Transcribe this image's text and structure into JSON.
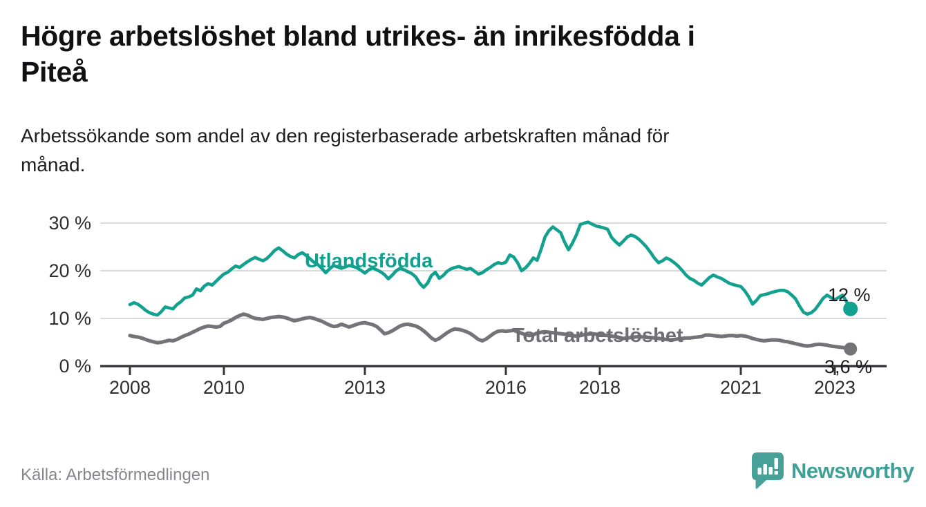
{
  "header": {
    "title_lines": [
      "Högre arbetslöshet bland utrikes- än inrikesfödda i",
      "Piteå"
    ],
    "subtitle_lines": [
      "Arbetssökande som andel av den registerbaserade arbetskraften månad för",
      "månad."
    ]
  },
  "footer": {
    "source": "Källa: Arbetsförmedlingen",
    "brand": "Newsworthy"
  },
  "colors": {
    "teal_line": "#12a08f",
    "gray_line": "#737378",
    "grid": "#d9d9d9",
    "axis": "#38383c",
    "brand_teal": "#3fa096"
  },
  "chart_data": {
    "type": "line",
    "title": "Högre arbetslöshet bland utrikes- än inrikesfödda i Piteå",
    "subtitle": "Arbetssökande som andel av den registerbaserade arbetskraften månad för månad.",
    "xlabel": "",
    "ylabel": "",
    "unit": "%",
    "x_start_year": 2008,
    "x_step_months": 1,
    "ylim": [
      0,
      32
    ],
    "grid": "horizontal",
    "legend_position": "inline-labels",
    "xticks": [
      {
        "year": 2008,
        "label": "2008"
      },
      {
        "year": 2010,
        "label": "2010"
      },
      {
        "year": 2013,
        "label": "2013"
      },
      {
        "year": 2016,
        "label": "2016"
      },
      {
        "year": 2018,
        "label": "2018"
      },
      {
        "year": 2021,
        "label": "2021"
      },
      {
        "year": 2023,
        "label": "2023"
      }
    ],
    "yticks": [
      {
        "value": 30,
        "label": "30 %"
      },
      {
        "value": 20,
        "label": "20 %"
      },
      {
        "value": 10,
        "label": "10 %"
      },
      {
        "value": 0,
        "label": "0 %"
      }
    ],
    "series": [
      {
        "name": "Utlandsfödda",
        "color": "#12a08f",
        "end_label": "12 %",
        "end_value": 12,
        "values": [
          12.9,
          13.3,
          13.0,
          12.4,
          11.7,
          11.2,
          10.9,
          10.7,
          11.4,
          12.4,
          12.2,
          12.0,
          12.9,
          13.5,
          14.3,
          14.5,
          14.9,
          16.2,
          15.8,
          16.8,
          17.3,
          17.0,
          17.8,
          18.6,
          19.3,
          19.7,
          20.4,
          21.0,
          20.7,
          21.3,
          21.9,
          22.4,
          22.8,
          22.4,
          22.1,
          22.6,
          23.4,
          24.3,
          24.8,
          24.2,
          23.5,
          23.0,
          22.7,
          23.4,
          23.8,
          23.2,
          22.5,
          21.8,
          21.3,
          20.5,
          19.6,
          20.4,
          21.1,
          20.8,
          20.5,
          20.8,
          21.1,
          20.9,
          20.6,
          20.1,
          19.5,
          20.2,
          20.6,
          20.2,
          19.8,
          19.2,
          18.3,
          19.1,
          20.0,
          20.5,
          20.2,
          19.8,
          19.4,
          18.7,
          17.4,
          16.5,
          17.4,
          19.0,
          19.7,
          18.4,
          19.0,
          19.9,
          20.4,
          20.7,
          20.9,
          20.6,
          20.3,
          20.5,
          19.9,
          19.3,
          19.6,
          20.2,
          20.7,
          21.3,
          21.7,
          21.5,
          21.8,
          23.3,
          22.9,
          21.7,
          20.0,
          20.6,
          21.5,
          22.7,
          22.2,
          24.5,
          27.1,
          28.4,
          29.2,
          28.6,
          28.0,
          26.0,
          24.4,
          25.8,
          27.5,
          29.7,
          30.0,
          30.2,
          29.8,
          29.4,
          29.2,
          29.0,
          28.7,
          27.0,
          26.1,
          25.4,
          26.2,
          27.1,
          27.5,
          27.2,
          26.6,
          25.8,
          24.9,
          23.8,
          22.6,
          21.7,
          22.1,
          22.7,
          22.3,
          21.7,
          21.0,
          20.1,
          19.1,
          18.4,
          18.0,
          17.4,
          17.0,
          17.8,
          18.6,
          19.1,
          18.7,
          18.4,
          17.9,
          17.4,
          17.1,
          16.9,
          16.7,
          15.8,
          14.6,
          13.0,
          13.8,
          14.8,
          15.0,
          15.2,
          15.5,
          15.7,
          15.9,
          15.9,
          15.6,
          14.9,
          14.1,
          12.6,
          11.3,
          10.9,
          11.2,
          11.9,
          13.0,
          14.2,
          14.9,
          14.4,
          13.9,
          14.4,
          14.9,
          13.5,
          12.0
        ]
      },
      {
        "name": "Total arbetslöshet",
        "color": "#737378",
        "end_label": "3,6 %",
        "end_value": 3.6,
        "values": [
          6.4,
          6.2,
          6.1,
          5.9,
          5.6,
          5.3,
          5.1,
          4.9,
          5.0,
          5.2,
          5.4,
          5.3,
          5.6,
          6.0,
          6.4,
          6.7,
          7.1,
          7.5,
          7.9,
          8.2,
          8.4,
          8.3,
          8.2,
          8.3,
          9.0,
          9.3,
          9.7,
          10.2,
          10.6,
          10.9,
          10.7,
          10.3,
          10.0,
          9.9,
          9.8,
          10.0,
          10.2,
          10.3,
          10.4,
          10.3,
          10.1,
          9.8,
          9.5,
          9.7,
          9.9,
          10.1,
          10.2,
          10.0,
          9.7,
          9.4,
          9.0,
          8.6,
          8.3,
          8.4,
          8.8,
          8.5,
          8.2,
          8.5,
          8.8,
          9.0,
          9.1,
          8.9,
          8.7,
          8.3,
          7.6,
          6.8,
          7.0,
          7.4,
          7.9,
          8.4,
          8.7,
          8.8,
          8.6,
          8.4,
          8.0,
          7.4,
          6.7,
          5.9,
          5.4,
          5.8,
          6.4,
          7.0,
          7.5,
          7.8,
          7.7,
          7.5,
          7.2,
          6.8,
          6.2,
          5.6,
          5.3,
          5.7,
          6.3,
          6.9,
          7.3,
          7.4,
          7.3,
          7.4,
          7.5,
          7.2,
          6.9,
          6.6,
          6.4,
          6.6,
          6.9,
          7.1,
          7.2,
          7.1,
          7.0,
          6.9,
          6.8,
          6.7,
          6.5,
          6.4,
          6.3,
          6.4,
          6.6,
          6.7,
          6.8,
          6.7,
          6.6,
          6.5,
          6.4,
          6.3,
          6.1,
          5.9,
          5.8,
          5.9,
          6.0,
          6.1,
          6.2,
          6.1,
          6.0,
          6.0,
          5.9,
          5.8,
          5.7,
          5.6,
          5.5,
          5.6,
          5.7,
          5.8,
          5.9,
          5.9,
          6.0,
          6.1,
          6.2,
          6.5,
          6.5,
          6.4,
          6.3,
          6.2,
          6.3,
          6.4,
          6.4,
          6.3,
          6.4,
          6.3,
          6.1,
          5.8,
          5.6,
          5.4,
          5.3,
          5.4,
          5.5,
          5.5,
          5.4,
          5.2,
          5.1,
          4.9,
          4.7,
          4.5,
          4.3,
          4.2,
          4.3,
          4.5,
          4.6,
          4.5,
          4.4,
          4.2,
          4.1,
          4.0,
          3.9,
          3.8,
          3.6
        ]
      }
    ]
  }
}
